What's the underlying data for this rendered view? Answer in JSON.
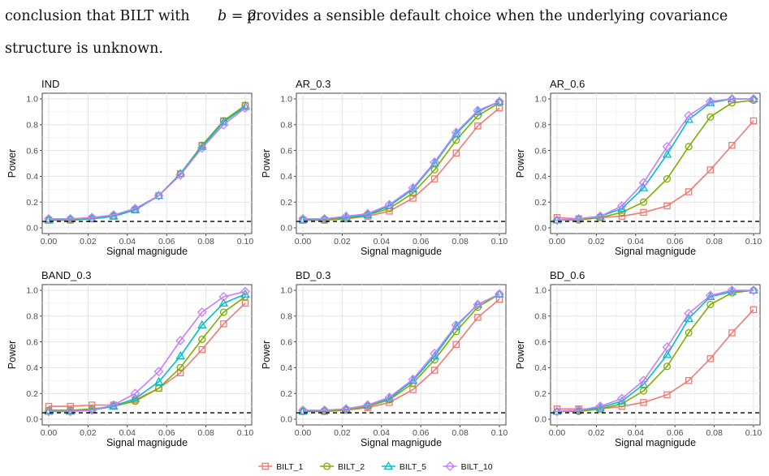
{
  "paragraph": {
    "line1_pre": "conclusion that BILT with",
    "line1_math": "b = 2",
    "line1_post": "provides a sensible default choice when the underlying covariance",
    "line2": "structure is unknown."
  },
  "colors": {
    "BILT_1": "#f07a72",
    "BILT_2": "#7cae00",
    "BILT_5": "#00bfc4",
    "BILT_10": "#c77cff"
  },
  "chart_data": [
    {
      "type": "line",
      "title": "IND",
      "xlabel": "Signal magnigude",
      "ylabel": "Power",
      "x": [
        0,
        0.011,
        0.022,
        0.033,
        0.044,
        0.056,
        0.067,
        0.078,
        0.089,
        0.1
      ],
      "xlim": [
        0,
        0.1
      ],
      "ylim": [
        0,
        1
      ],
      "xticks": [
        "0.00",
        "0.02",
        "0.04",
        "0.06",
        "0.08",
        "0.10"
      ],
      "yticks": [
        "0.0",
        "0.2",
        "0.4",
        "0.6",
        "0.8",
        "1.0"
      ],
      "reference_line": 0.05,
      "grid": true,
      "series": [
        {
          "name": "BILT_1",
          "marker": "square",
          "values": [
            0.06,
            0.06,
            0.07,
            0.09,
            0.14,
            0.25,
            0.42,
            0.64,
            0.83,
            0.95
          ]
        },
        {
          "name": "BILT_2",
          "marker": "circle",
          "values": [
            0.06,
            0.06,
            0.07,
            0.09,
            0.14,
            0.25,
            0.42,
            0.64,
            0.83,
            0.95
          ]
        },
        {
          "name": "BILT_5",
          "marker": "triangle",
          "values": [
            0.06,
            0.07,
            0.07,
            0.09,
            0.14,
            0.25,
            0.42,
            0.63,
            0.82,
            0.94
          ]
        },
        {
          "name": "BILT_10",
          "marker": "diamond",
          "values": [
            0.07,
            0.07,
            0.08,
            0.1,
            0.15,
            0.25,
            0.41,
            0.62,
            0.8,
            0.93
          ]
        }
      ]
    },
    {
      "type": "line",
      "title": "AR_0.3",
      "xlabel": "Signal magnigude",
      "ylabel": "Power",
      "x": [
        0,
        0.011,
        0.022,
        0.033,
        0.044,
        0.056,
        0.067,
        0.078,
        0.089,
        0.1
      ],
      "xlim": [
        0,
        0.1
      ],
      "ylim": [
        0,
        1
      ],
      "xticks": [
        "0.00",
        "0.02",
        "0.04",
        "0.06",
        "0.08",
        "0.10"
      ],
      "yticks": [
        "0.0",
        "0.2",
        "0.4",
        "0.6",
        "0.8",
        "1.0"
      ],
      "reference_line": 0.05,
      "grid": true,
      "series": [
        {
          "name": "BILT_1",
          "marker": "square",
          "values": [
            0.06,
            0.06,
            0.07,
            0.09,
            0.13,
            0.23,
            0.38,
            0.58,
            0.79,
            0.93
          ]
        },
        {
          "name": "BILT_2",
          "marker": "circle",
          "values": [
            0.06,
            0.06,
            0.07,
            0.1,
            0.15,
            0.27,
            0.45,
            0.68,
            0.87,
            0.97
          ]
        },
        {
          "name": "BILT_5",
          "marker": "triangle",
          "values": [
            0.06,
            0.07,
            0.08,
            0.1,
            0.17,
            0.3,
            0.5,
            0.73,
            0.9,
            0.98
          ]
        },
        {
          "name": "BILT_10",
          "marker": "diamond",
          "values": [
            0.07,
            0.07,
            0.09,
            0.11,
            0.18,
            0.31,
            0.51,
            0.74,
            0.91,
            0.98
          ]
        }
      ]
    },
    {
      "type": "line",
      "title": "AR_0.6",
      "xlabel": "Signal magnigude",
      "ylabel": "Power",
      "x": [
        0,
        0.011,
        0.022,
        0.033,
        0.044,
        0.056,
        0.067,
        0.078,
        0.089,
        0.1
      ],
      "xlim": [
        0,
        0.1
      ],
      "ylim": [
        0,
        1
      ],
      "xticks": [
        "0.00",
        "0.02",
        "0.04",
        "0.06",
        "0.08",
        "0.10"
      ],
      "yticks": [
        "0.0",
        "0.2",
        "0.4",
        "0.6",
        "0.8",
        "1.0"
      ],
      "reference_line": 0.05,
      "grid": true,
      "series": [
        {
          "name": "BILT_1",
          "marker": "square",
          "values": [
            0.08,
            0.07,
            0.08,
            0.09,
            0.12,
            0.17,
            0.28,
            0.45,
            0.64,
            0.83
          ]
        },
        {
          "name": "BILT_2",
          "marker": "circle",
          "values": [
            0.06,
            0.06,
            0.08,
            0.12,
            0.2,
            0.38,
            0.63,
            0.86,
            0.97,
            0.99
          ]
        },
        {
          "name": "BILT_5",
          "marker": "triangle",
          "values": [
            0.06,
            0.07,
            0.09,
            0.15,
            0.31,
            0.57,
            0.84,
            0.97,
            1.0,
            1.0
          ]
        },
        {
          "name": "BILT_10",
          "marker": "diamond",
          "values": [
            0.06,
            0.07,
            0.09,
            0.17,
            0.35,
            0.63,
            0.87,
            0.98,
            1.0,
            1.0
          ]
        }
      ]
    },
    {
      "type": "line",
      "title": "BAND_0.3",
      "xlabel": "Signal magnigude",
      "ylabel": "Power",
      "x": [
        0,
        0.011,
        0.022,
        0.033,
        0.044,
        0.056,
        0.067,
        0.078,
        0.089,
        0.1
      ],
      "xlim": [
        0,
        0.1
      ],
      "ylim": [
        0,
        1
      ],
      "xticks": [
        "0.00",
        "0.02",
        "0.04",
        "0.06",
        "0.08",
        "0.10"
      ],
      "yticks": [
        "0.0",
        "0.2",
        "0.4",
        "0.6",
        "0.8",
        "1.0"
      ],
      "reference_line": 0.05,
      "grid": true,
      "series": [
        {
          "name": "BILT_1",
          "marker": "square",
          "values": [
            0.1,
            0.1,
            0.11,
            0.11,
            0.15,
            0.24,
            0.36,
            0.54,
            0.74,
            0.9
          ]
        },
        {
          "name": "BILT_2",
          "marker": "circle",
          "values": [
            0.07,
            0.07,
            0.08,
            0.1,
            0.14,
            0.24,
            0.4,
            0.62,
            0.83,
            0.95
          ]
        },
        {
          "name": "BILT_5",
          "marker": "triangle",
          "values": [
            0.06,
            0.06,
            0.07,
            0.1,
            0.16,
            0.29,
            0.49,
            0.73,
            0.9,
            0.97
          ]
        },
        {
          "name": "BILT_10",
          "marker": "diamond",
          "values": [
            0.06,
            0.06,
            0.07,
            0.11,
            0.2,
            0.37,
            0.61,
            0.83,
            0.95,
            0.99
          ]
        }
      ]
    },
    {
      "type": "line",
      "title": "BD_0.3",
      "xlabel": "Signal magnigude",
      "ylabel": "Power",
      "x": [
        0,
        0.011,
        0.022,
        0.033,
        0.044,
        0.056,
        0.067,
        0.078,
        0.089,
        0.1
      ],
      "xlim": [
        0,
        0.1
      ],
      "ylim": [
        0,
        1
      ],
      "xticks": [
        "0.00",
        "0.02",
        "0.04",
        "0.06",
        "0.08",
        "0.10"
      ],
      "yticks": [
        "0.0",
        "0.2",
        "0.4",
        "0.6",
        "0.8",
        "1.0"
      ],
      "reference_line": 0.05,
      "grid": true,
      "series": [
        {
          "name": "BILT_1",
          "marker": "square",
          "values": [
            0.06,
            0.06,
            0.07,
            0.09,
            0.13,
            0.23,
            0.38,
            0.58,
            0.79,
            0.93
          ]
        },
        {
          "name": "BILT_2",
          "marker": "circle",
          "values": [
            0.06,
            0.06,
            0.07,
            0.1,
            0.15,
            0.28,
            0.46,
            0.68,
            0.87,
            0.97
          ]
        },
        {
          "name": "BILT_5",
          "marker": "triangle",
          "values": [
            0.06,
            0.07,
            0.08,
            0.11,
            0.16,
            0.3,
            0.49,
            0.72,
            0.89,
            0.97
          ]
        },
        {
          "name": "BILT_10",
          "marker": "diamond",
          "values": [
            0.07,
            0.07,
            0.08,
            0.11,
            0.17,
            0.31,
            0.51,
            0.73,
            0.89,
            0.97
          ]
        }
      ]
    },
    {
      "type": "line",
      "title": "BD_0.6",
      "xlabel": "Signal magnigude",
      "ylabel": "Power",
      "x": [
        0,
        0.011,
        0.022,
        0.033,
        0.044,
        0.056,
        0.067,
        0.078,
        0.089,
        0.1
      ],
      "xlim": [
        0,
        0.1
      ],
      "ylim": [
        0,
        1
      ],
      "xticks": [
        "0.00",
        "0.02",
        "0.04",
        "0.06",
        "0.08",
        "0.10"
      ],
      "yticks": [
        "0.0",
        "0.2",
        "0.4",
        "0.6",
        "0.8",
        "1.0"
      ],
      "reference_line": 0.05,
      "grid": true,
      "series": [
        {
          "name": "BILT_1",
          "marker": "square",
          "values": [
            0.08,
            0.08,
            0.08,
            0.1,
            0.13,
            0.19,
            0.3,
            0.47,
            0.67,
            0.85
          ]
        },
        {
          "name": "BILT_2",
          "marker": "circle",
          "values": [
            0.06,
            0.06,
            0.08,
            0.12,
            0.22,
            0.41,
            0.67,
            0.89,
            0.98,
            1.0
          ]
        },
        {
          "name": "BILT_5",
          "marker": "triangle",
          "values": [
            0.06,
            0.07,
            0.09,
            0.14,
            0.27,
            0.5,
            0.78,
            0.95,
            0.99,
            1.0
          ]
        },
        {
          "name": "BILT_10",
          "marker": "diamond",
          "values": [
            0.06,
            0.07,
            0.1,
            0.16,
            0.3,
            0.56,
            0.82,
            0.96,
            1.0,
            1.0
          ]
        }
      ]
    }
  ],
  "legend": {
    "placement": "bottom",
    "items": [
      "BILT_1",
      "BILT_2",
      "BILT_5",
      "BILT_10"
    ]
  }
}
